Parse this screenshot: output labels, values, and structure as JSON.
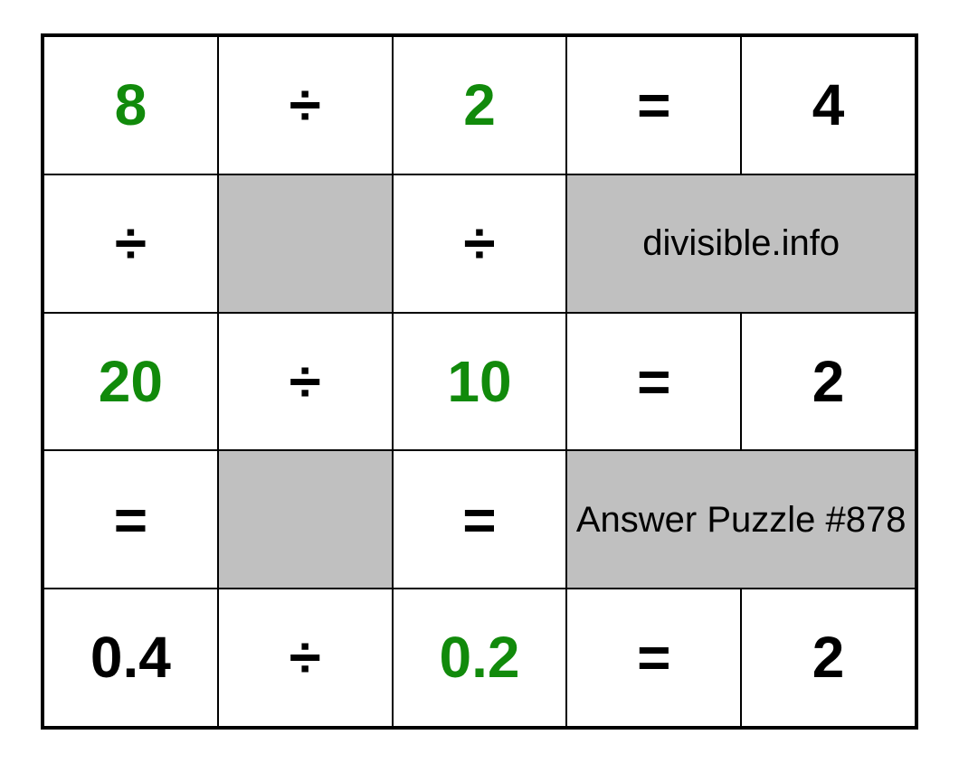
{
  "grid": {
    "type": "table",
    "rows": 5,
    "cols": 5,
    "background_color": "#ffffff",
    "border_color": "#000000",
    "grey_fill": "#c0c0c0",
    "green_text": "#118a0b",
    "black_text": "#000000",
    "cell_fontsize": 64,
    "info_fontsize": 40,
    "cells": {
      "r0c0": "8",
      "r0c1": "÷",
      "r0c2": "2",
      "r0c3": "=",
      "r0c4": "4",
      "r1c0": "÷",
      "r1c2": "÷",
      "r1c34": "divisible.info",
      "r2c0": "20",
      "r2c1": "÷",
      "r2c2": "10",
      "r2c3": "=",
      "r2c4": "2",
      "r3c0": "=",
      "r3c2": "=",
      "r3c34": "Answer Puzzle #878",
      "r4c0": "0.4",
      "r4c1": "÷",
      "r4c2": "0.2",
      "r4c3": "=",
      "r4c4": "2"
    }
  }
}
